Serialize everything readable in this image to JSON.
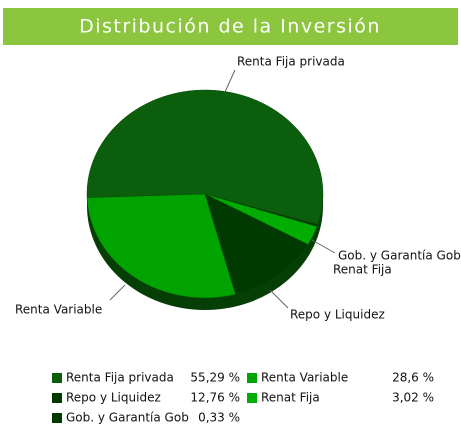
{
  "chart_data": {
    "type": "pie",
    "title": "Distribución de la Inversión",
    "categories": [
      "Renta Fija privada",
      "Renta Variable",
      "Repo y Liquidez",
      "Renat Fija",
      "Gob. y Garantía Gob"
    ],
    "values": [
      55.29,
      28.6,
      12.76,
      3.02,
      0.33
    ],
    "value_labels": [
      "55,29 %",
      "28,6 %",
      "12,76 %",
      "3,02 %",
      "0,33 %"
    ],
    "colors": [
      "#0b5e0b",
      "#00a300",
      "#003a00",
      "#00ad00",
      "#003a00"
    ]
  }
}
